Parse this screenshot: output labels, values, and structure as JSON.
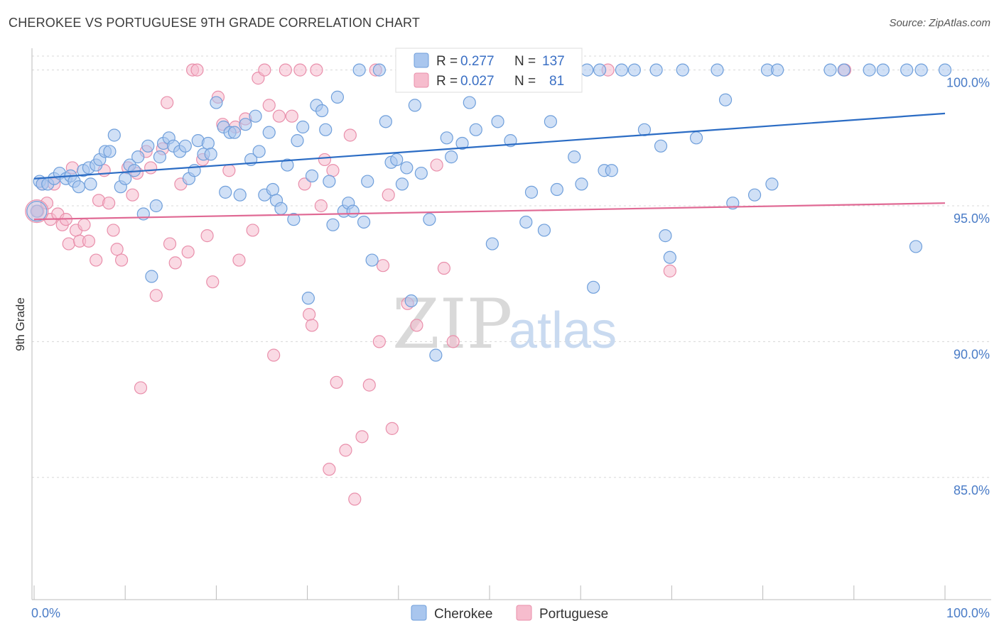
{
  "title": "CHEROKEE VS PORTUGUESE 9TH GRADE CORRELATION CHART",
  "source": "Source: ZipAtlas.com",
  "watermark": {
    "zip": "ZIP",
    "atlas": "atlas"
  },
  "colors": {
    "cherokee_fill": "#a9c6ee",
    "cherokee_stroke": "#6f9fdb",
    "cherokee_line": "#2b6cc4",
    "portuguese_fill": "#f6bccd",
    "portuguese_stroke": "#e98fab",
    "portuguese_line": "#e06994",
    "grid": "#d8d8d8",
    "tick_label": "#4a7cc7"
  },
  "legend_top": {
    "rows": [
      {
        "r_label": "R = ",
        "r_value": "0.277",
        "n_label": "N = ",
        "n_value": "137"
      },
      {
        "r_label": "R = ",
        "r_value": "0.027",
        "n_label": "N = ",
        "n_value": "81"
      }
    ]
  },
  "legend_bottom": [
    "Cherokee",
    "Portuguese"
  ],
  "chart_data": {
    "type": "scatter",
    "xlabel": "",
    "ylabel": "9th Grade",
    "xlim": [
      0,
      100
    ],
    "ylim": [
      80.5,
      100.8
    ],
    "x_tick_labels": [
      {
        "value": 0,
        "label": "0.0%"
      },
      {
        "value": 100,
        "label": "100.0%"
      }
    ],
    "y_ticks": [
      {
        "value": 100,
        "label": "100.0%"
      },
      {
        "value": 95,
        "label": "95.0%"
      },
      {
        "value": 90,
        "label": "90.0%"
      },
      {
        "value": 85,
        "label": "85.0%"
      }
    ],
    "grid": true,
    "legend_position": "top-center",
    "series": [
      {
        "name": "Cherokee",
        "trend": {
          "x": [
            0,
            100
          ],
          "y": [
            96.0,
            98.4
          ]
        },
        "points": [
          [
            0.3,
            94.8
          ],
          [
            0.6,
            95.9
          ],
          [
            0.9,
            95.8
          ],
          [
            1.5,
            95.8
          ],
          [
            2.2,
            96.0
          ],
          [
            2.8,
            96.2
          ],
          [
            3.5,
            96.0
          ],
          [
            4.0,
            96.1
          ],
          [
            4.4,
            95.9
          ],
          [
            4.9,
            95.7
          ],
          [
            5.4,
            96.3
          ],
          [
            6.0,
            96.4
          ],
          [
            6.2,
            95.8
          ],
          [
            6.8,
            96.5
          ],
          [
            7.2,
            96.7
          ],
          [
            7.8,
            97.0
          ],
          [
            8.3,
            97.0
          ],
          [
            8.8,
            97.6
          ],
          [
            9.5,
            95.7
          ],
          [
            10.0,
            96.0
          ],
          [
            10.5,
            96.5
          ],
          [
            11.0,
            96.3
          ],
          [
            11.4,
            96.8
          ],
          [
            12.0,
            94.7
          ],
          [
            12.5,
            97.2
          ],
          [
            12.9,
            92.4
          ],
          [
            13.4,
            95.0
          ],
          [
            13.8,
            96.8
          ],
          [
            14.2,
            97.3
          ],
          [
            14.8,
            97.5
          ],
          [
            15.3,
            97.2
          ],
          [
            16.0,
            97.0
          ],
          [
            16.6,
            97.2
          ],
          [
            17.0,
            96.0
          ],
          [
            17.6,
            96.3
          ],
          [
            18.0,
            97.4
          ],
          [
            18.6,
            96.9
          ],
          [
            19.1,
            97.3
          ],
          [
            19.4,
            96.9
          ],
          [
            20.0,
            98.8
          ],
          [
            20.8,
            97.9
          ],
          [
            21.0,
            95.5
          ],
          [
            21.5,
            97.7
          ],
          [
            22.0,
            97.7
          ],
          [
            22.6,
            95.4
          ],
          [
            23.2,
            98.0
          ],
          [
            23.8,
            96.7
          ],
          [
            24.3,
            98.3
          ],
          [
            24.7,
            97.0
          ],
          [
            25.3,
            95.4
          ],
          [
            25.8,
            97.7
          ],
          [
            26.2,
            95.6
          ],
          [
            26.6,
            95.2
          ],
          [
            27.1,
            94.9
          ],
          [
            27.8,
            96.5
          ],
          [
            28.5,
            94.5
          ],
          [
            28.9,
            97.4
          ],
          [
            29.5,
            97.9
          ],
          [
            30.1,
            91.6
          ],
          [
            30.5,
            96.1
          ],
          [
            31.0,
            98.7
          ],
          [
            31.6,
            98.5
          ],
          [
            32.0,
            97.8
          ],
          [
            32.4,
            95.9
          ],
          [
            32.8,
            94.3
          ],
          [
            33.3,
            99.0
          ],
          [
            34.0,
            94.8
          ],
          [
            34.5,
            95.1
          ],
          [
            35.0,
            94.8
          ],
          [
            35.7,
            100.0
          ],
          [
            36.2,
            94.4
          ],
          [
            36.6,
            95.9
          ],
          [
            37.1,
            93.0
          ],
          [
            37.9,
            100.0
          ],
          [
            38.6,
            98.1
          ],
          [
            39.2,
            96.6
          ],
          [
            39.8,
            96.7
          ],
          [
            40.4,
            95.8
          ],
          [
            40.9,
            96.4
          ],
          [
            41.4,
            91.5
          ],
          [
            41.8,
            98.7
          ],
          [
            42.5,
            96.2
          ],
          [
            43.0,
            100.0
          ],
          [
            43.4,
            94.5
          ],
          [
            44.1,
            89.5
          ],
          [
            44.7,
            100.0
          ],
          [
            45.3,
            97.5
          ],
          [
            45.8,
            96.8
          ],
          [
            46.4,
            100.0
          ],
          [
            47.0,
            97.3
          ],
          [
            47.8,
            98.8
          ],
          [
            48.5,
            97.8
          ],
          [
            49.6,
            100.0
          ],
          [
            50.3,
            93.6
          ],
          [
            50.9,
            98.1
          ],
          [
            51.5,
            100.0
          ],
          [
            52.3,
            97.4
          ],
          [
            53.1,
            100.0
          ],
          [
            54.0,
            94.4
          ],
          [
            54.6,
            95.5
          ],
          [
            55.4,
            100.0
          ],
          [
            56.0,
            94.1
          ],
          [
            56.7,
            98.1
          ],
          [
            57.4,
            95.6
          ],
          [
            57.8,
            100.0
          ],
          [
            58.5,
            100.0
          ],
          [
            59.3,
            96.8
          ],
          [
            60.1,
            95.8
          ],
          [
            60.7,
            100.0
          ],
          [
            61.4,
            92.0
          ],
          [
            62.1,
            100.0
          ],
          [
            62.6,
            96.3
          ],
          [
            63.4,
            96.3
          ],
          [
            64.5,
            100.0
          ],
          [
            65.9,
            100.0
          ],
          [
            67.0,
            97.8
          ],
          [
            68.3,
            100.0
          ],
          [
            68.8,
            97.2
          ],
          [
            69.3,
            93.9
          ],
          [
            69.8,
            93.1
          ],
          [
            71.2,
            100.0
          ],
          [
            72.7,
            97.5
          ],
          [
            75.0,
            100.0
          ],
          [
            75.9,
            98.9
          ],
          [
            76.7,
            95.1
          ],
          [
            79.1,
            95.4
          ],
          [
            80.5,
            100.0
          ],
          [
            81.6,
            100.0
          ],
          [
            81.0,
            95.8
          ],
          [
            87.4,
            100.0
          ],
          [
            88.9,
            100.0
          ],
          [
            91.7,
            100.0
          ],
          [
            93.2,
            100.0
          ],
          [
            95.8,
            100.0
          ],
          [
            97.4,
            100.0
          ],
          [
            96.8,
            93.5
          ],
          [
            100.0,
            100.0
          ]
        ]
      },
      {
        "name": "Portuguese",
        "trend": {
          "x": [
            0,
            100
          ],
          "y": [
            94.5,
            95.1
          ]
        },
        "points": [
          [
            0.4,
            94.8
          ],
          [
            0.9,
            95.8
          ],
          [
            1.4,
            95.1
          ],
          [
            1.8,
            94.5
          ],
          [
            2.2,
            95.8
          ],
          [
            2.6,
            94.7
          ],
          [
            3.1,
            94.3
          ],
          [
            3.5,
            94.5
          ],
          [
            3.8,
            93.6
          ],
          [
            4.2,
            96.4
          ],
          [
            4.6,
            94.1
          ],
          [
            5.0,
            93.7
          ],
          [
            5.5,
            94.3
          ],
          [
            6.0,
            93.7
          ],
          [
            6.8,
            93.0
          ],
          [
            7.1,
            95.2
          ],
          [
            7.7,
            96.3
          ],
          [
            8.2,
            95.1
          ],
          [
            8.7,
            94.1
          ],
          [
            9.1,
            93.4
          ],
          [
            9.6,
            93.0
          ],
          [
            10.3,
            96.4
          ],
          [
            10.8,
            95.4
          ],
          [
            11.3,
            96.2
          ],
          [
            11.7,
            88.3
          ],
          [
            12.3,
            97.0
          ],
          [
            12.8,
            96.4
          ],
          [
            13.4,
            91.7
          ],
          [
            14.1,
            97.1
          ],
          [
            14.6,
            98.8
          ],
          [
            14.9,
            93.6
          ],
          [
            15.5,
            92.9
          ],
          [
            16.1,
            95.8
          ],
          [
            16.9,
            93.3
          ],
          [
            17.4,
            100.0
          ],
          [
            17.9,
            100.0
          ],
          [
            18.5,
            96.7
          ],
          [
            19.0,
            93.9
          ],
          [
            19.6,
            92.2
          ],
          [
            20.2,
            99.0
          ],
          [
            20.7,
            98.0
          ],
          [
            21.4,
            96.3
          ],
          [
            22.1,
            97.9
          ],
          [
            22.5,
            93.0
          ],
          [
            23.2,
            98.2
          ],
          [
            24.0,
            94.1
          ],
          [
            24.6,
            99.7
          ],
          [
            25.3,
            100.0
          ],
          [
            25.8,
            98.7
          ],
          [
            26.3,
            89.5
          ],
          [
            26.9,
            98.3
          ],
          [
            27.6,
            100.0
          ],
          [
            28.3,
            98.3
          ],
          [
            29.2,
            100.0
          ],
          [
            29.7,
            95.8
          ],
          [
            30.2,
            91.0
          ],
          [
            30.5,
            90.6
          ],
          [
            31.0,
            100.0
          ],
          [
            31.5,
            95.0
          ],
          [
            31.9,
            96.7
          ],
          [
            32.4,
            85.3
          ],
          [
            32.8,
            96.3
          ],
          [
            33.2,
            88.5
          ],
          [
            34.2,
            86.0
          ],
          [
            34.7,
            97.6
          ],
          [
            35.2,
            84.2
          ],
          [
            36.0,
            86.5
          ],
          [
            36.8,
            88.4
          ],
          [
            37.5,
            100.0
          ],
          [
            37.9,
            90.0
          ],
          [
            38.3,
            92.8
          ],
          [
            38.9,
            95.4
          ],
          [
            39.3,
            86.8
          ],
          [
            41.0,
            91.4
          ],
          [
            42.0,
            90.6
          ],
          [
            44.2,
            96.5
          ],
          [
            45.0,
            92.7
          ],
          [
            46.0,
            90.0
          ],
          [
            63.0,
            100.0
          ],
          [
            69.8,
            92.6
          ],
          [
            89.0,
            100.0
          ]
        ]
      }
    ]
  }
}
